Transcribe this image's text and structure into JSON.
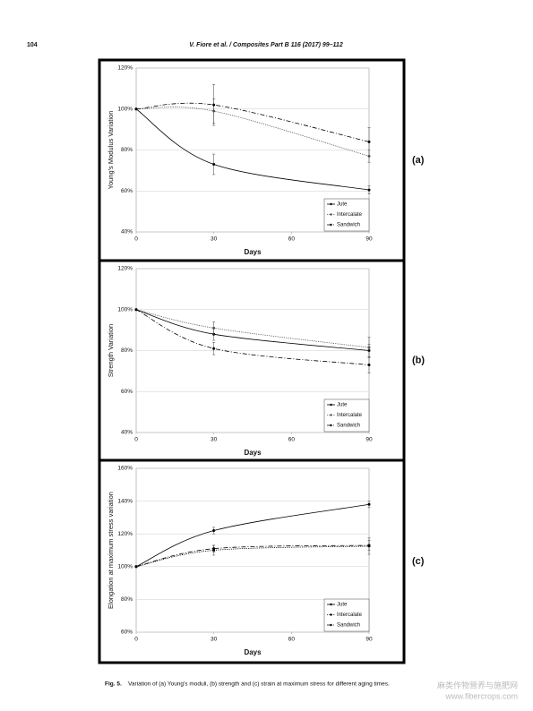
{
  "header": {
    "page_number": "104",
    "running_title": "V. Fiore et al. / Composites Part B 116 (2017) 99–112"
  },
  "chart_data": [
    {
      "type": "line",
      "label": "(a)",
      "x_label": "Days",
      "y_label": "Young's Modulus Variation",
      "x": [
        0,
        30,
        90
      ],
      "xlim": [
        0,
        90
      ],
      "xticks": [
        0,
        30,
        60,
        90
      ],
      "ylim": [
        40,
        120
      ],
      "yticks": [
        {
          "value": 40,
          "label": "40%"
        },
        {
          "value": 60,
          "label": "60%"
        },
        {
          "value": 80,
          "label": "80%"
        },
        {
          "value": 100,
          "label": "100%"
        },
        {
          "value": 120,
          "label": "120%"
        }
      ],
      "grid": true,
      "legend": "lower right",
      "series": [
        {
          "name": "Jute",
          "color": "#000000",
          "dash": "solid",
          "values": [
            100,
            73,
            60.5
          ],
          "errors": [
            0,
            5,
            2
          ]
        },
        {
          "name": "Intercalate",
          "color": "#555555",
          "dash": "dotted",
          "values": [
            100,
            99,
            77
          ],
          "errors": [
            0,
            6,
            3
          ]
        },
        {
          "name": "Sandwich",
          "color": "#000000",
          "dash": "dashdot",
          "values": [
            100,
            102,
            84
          ],
          "errors": [
            0,
            10,
            7
          ]
        }
      ]
    },
    {
      "type": "line",
      "label": "(b)",
      "x_label": "Days",
      "y_label": "Strength Variation",
      "x": [
        0,
        30,
        90
      ],
      "xlim": [
        0,
        90
      ],
      "xticks": [
        0,
        30,
        60,
        90
      ],
      "ylim": [
        40,
        120
      ],
      "yticks": [
        {
          "value": 40,
          "label": "40%"
        },
        {
          "value": 60,
          "label": "60%"
        },
        {
          "value": 80,
          "label": "80%"
        },
        {
          "value": 100,
          "label": "100%"
        },
        {
          "value": 120,
          "label": "120%"
        }
      ],
      "grid": true,
      "legend": "lower right",
      "series": [
        {
          "name": "Jute",
          "color": "#000000",
          "dash": "solid",
          "values": [
            100,
            88,
            80
          ],
          "errors": [
            0,
            3,
            3
          ]
        },
        {
          "name": "Intercalate",
          "color": "#555555",
          "dash": "dotted",
          "values": [
            100,
            91,
            81.5
          ],
          "errors": [
            0,
            3,
            5
          ]
        },
        {
          "name": "Sandwich",
          "color": "#000000",
          "dash": "dashdot",
          "values": [
            100,
            81,
            73
          ],
          "errors": [
            0,
            3,
            4
          ]
        }
      ]
    },
    {
      "type": "line",
      "label": "(c)",
      "x_label": "Days",
      "y_label": "Elongation at maximum stress variation",
      "x": [
        0,
        30,
        90
      ],
      "xlim": [
        0,
        90
      ],
      "xticks": [
        0,
        30,
        60,
        90
      ],
      "ylim": [
        60,
        160
      ],
      "yticks": [
        {
          "value": 60,
          "label": "60%"
        },
        {
          "value": 80,
          "label": "80%"
        },
        {
          "value": 100,
          "label": "100%"
        },
        {
          "value": 120,
          "label": "120%"
        },
        {
          "value": 140,
          "label": "140%"
        },
        {
          "value": 160,
          "label": "160%"
        }
      ],
      "grid": true,
      "legend": "lower right",
      "series": [
        {
          "name": "Jute",
          "color": "#000000",
          "dash": "solid",
          "values": [
            100,
            122,
            138
          ],
          "errors": [
            0,
            2,
            2
          ]
        },
        {
          "name": "Intercalate",
          "color": "#000000",
          "dash": "dotted",
          "values": [
            100,
            110,
            112.5
          ],
          "errors": [
            0,
            3,
            5
          ]
        },
        {
          "name": "Sandwich",
          "color": "#000000",
          "dash": "dashdot",
          "values": [
            100,
            111,
            113
          ],
          "errors": [
            0,
            2,
            3
          ]
        }
      ]
    }
  ],
  "caption": {
    "label": "Fig. 5.",
    "text": "Variation of (a) Young's moduli, (b) strength and (c) strain at maximum stress for different aging times."
  },
  "watermark": {
    "title": "麻类作物营养与施肥网",
    "url": "www.fibercrops.com"
  }
}
